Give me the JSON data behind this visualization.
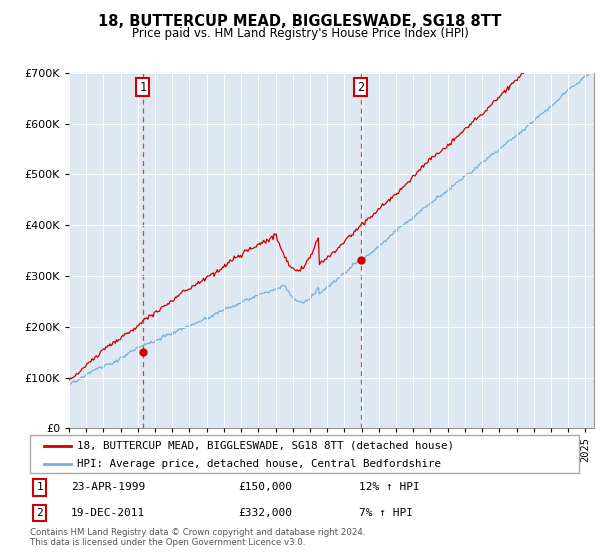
{
  "title": "18, BUTTERCUP MEAD, BIGGLESWADE, SG18 8TT",
  "subtitle": "Price paid vs. HM Land Registry's House Price Index (HPI)",
  "legend_line1": "18, BUTTERCUP MEAD, BIGGLESWADE, SG18 8TT (detached house)",
  "legend_line2": "HPI: Average price, detached house, Central Bedfordshire",
  "annotation1_date": "23-APR-1999",
  "annotation1_price": "£150,000",
  "annotation1_hpi": "12% ↑ HPI",
  "annotation2_date": "19-DEC-2011",
  "annotation2_price": "£332,000",
  "annotation2_hpi": "7% ↑ HPI",
  "footer": "Contains HM Land Registry data © Crown copyright and database right 2024.\nThis data is licensed under the Open Government Licence v3.0.",
  "hpi_color": "#7ab0d4",
  "price_color": "#cc0000",
  "annotation_box_color": "#cc0000",
  "bg_color": "#dde8f3",
  "ylim": [
    0,
    700000
  ],
  "yticks": [
    0,
    100000,
    200000,
    300000,
    400000,
    500000,
    600000,
    700000
  ],
  "xlim_start": 1995.0,
  "xlim_end": 2025.5,
  "sale1_year": 1999.29,
  "sale1_price": 150000,
  "sale2_year": 2011.96,
  "sale2_price": 332000
}
